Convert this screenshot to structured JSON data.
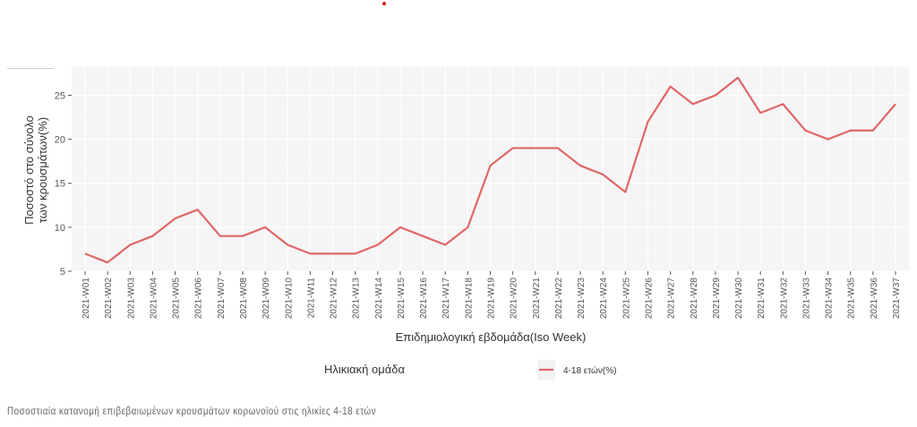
{
  "chart_data": {
    "type": "line",
    "title": "",
    "xlabel": "Επιδημιολογική εβδομάδα(Iso Week)",
    "ylabel": [
      "Ποσοστό στο σύνολο",
      "των κρουσμάτων(%)"
    ],
    "ylim": [
      5,
      28.2
    ],
    "yticks": [
      5,
      10,
      15,
      20,
      25
    ],
    "grid": true,
    "categories": [
      "2021-W01",
      "2021-W02",
      "2021-W03",
      "2021-W04",
      "2021-W05",
      "2021-W06",
      "2021-W07",
      "2021-W08",
      "2021-W09",
      "2021-W10",
      "2021-W11",
      "2021-W12",
      "2021-W13",
      "2021-W14",
      "2021-W15",
      "2021-W16",
      "2021-W17",
      "2021-W18",
      "2021-W19",
      "2021-W20",
      "2021-W21",
      "2021-W22",
      "2021-W23",
      "2021-W24",
      "2021-W25",
      "2021-W26",
      "2021-W27",
      "2021-W28",
      "2021-W29",
      "2021-W30",
      "2021-W31",
      "2021-W32",
      "2021-W33",
      "2021-W34",
      "2021-W35",
      "2021-W36",
      "2021-W37"
    ],
    "series": [
      {
        "name": "4-18 ετών(%)",
        "color": "#e06666",
        "values": [
          7,
          6,
          8,
          9,
          11,
          12,
          9,
          9,
          10,
          8,
          7,
          7,
          7,
          8,
          10,
          9,
          8,
          10,
          17,
          19,
          19,
          19,
          17,
          16,
          14,
          22,
          26,
          24,
          25,
          27,
          23,
          24,
          21,
          20,
          21,
          21,
          24
        ]
      }
    ],
    "legend": {
      "title": "Ηλικιακή ομάδα",
      "placement": "bottom"
    }
  },
  "caption": "Ποσοστιαία κατανομή επιβεβαιωμένων κρουσμάτων κορωνοϊού στις ηλικίες 4-18 ετών"
}
